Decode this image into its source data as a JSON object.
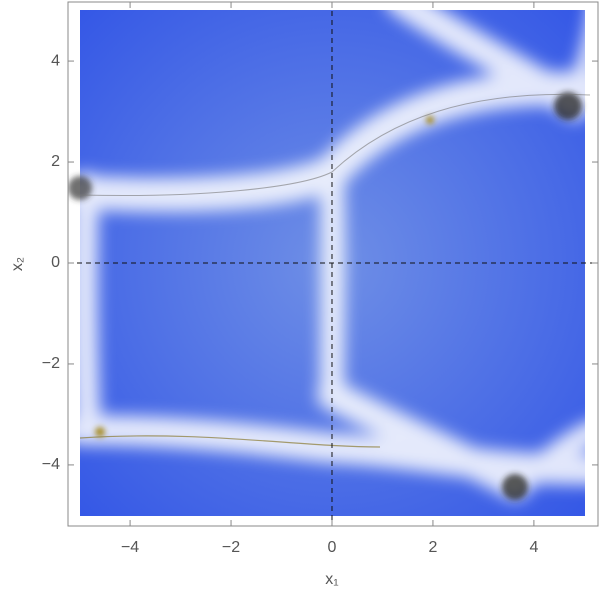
{
  "chart_data": {
    "type": "density",
    "xlabel": "x₁",
    "ylabel": "x₂",
    "xlim": [
      -5.23,
      5.27
    ],
    "ylim": [
      -5.21,
      5.17
    ],
    "xticks": [
      {
        "value": -4,
        "label": "−4"
      },
      {
        "value": -2,
        "label": "−2"
      },
      0,
      2,
      4
    ],
    "yticks": [
      {
        "value": -4,
        "label": "−4"
      },
      {
        "value": -2,
        "label": "−2"
      },
      0,
      2,
      4
    ],
    "axes": true
  }
}
